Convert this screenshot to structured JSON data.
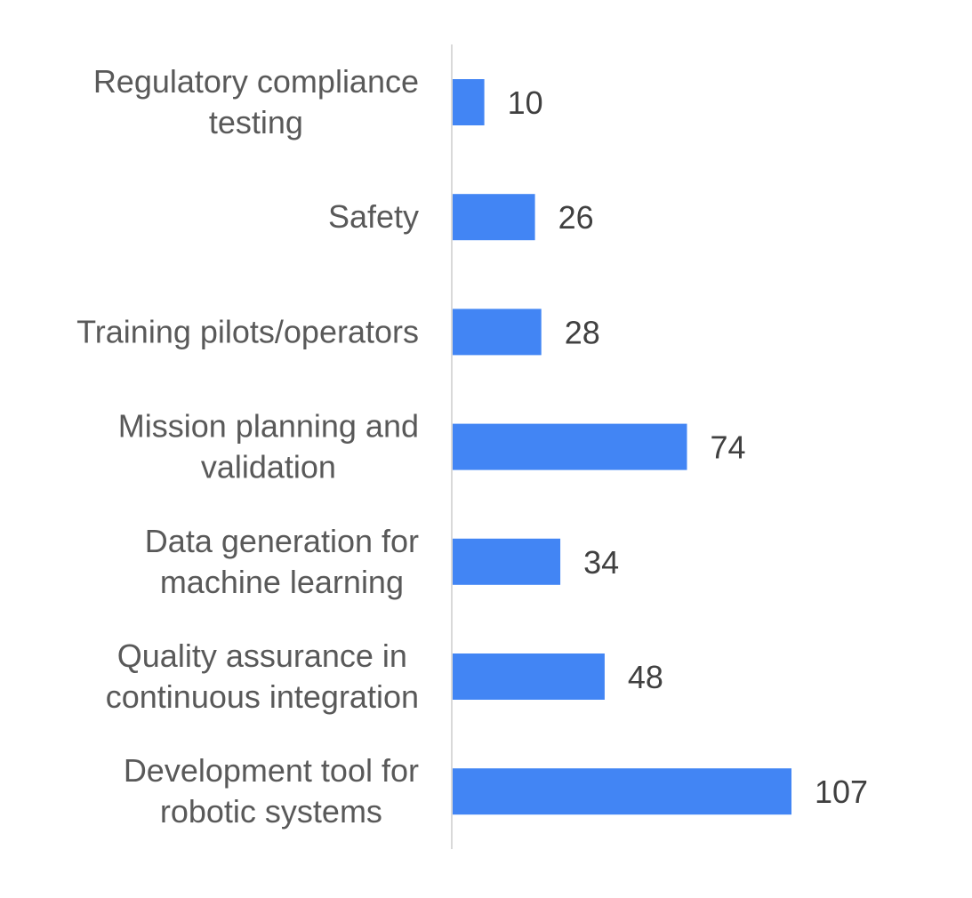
{
  "chart_data": {
    "type": "bar",
    "orientation": "horizontal",
    "title": "",
    "xlabel": "",
    "ylabel": "",
    "categories": [
      "Regulatory compliance testing",
      "Safety",
      "Training pilots/operators",
      "Mission planning and validation",
      "Data generation for machine learning",
      "Quality assurance in continuous integration",
      "Development tool for robotic systems"
    ],
    "category_label_lines": [
      [
        "Regulatory compliance",
        "testing"
      ],
      [
        "Safety"
      ],
      [
        "Training pilots/operators"
      ],
      [
        "Mission planning and",
        "validation"
      ],
      [
        "Data generation for",
        "machine learning"
      ],
      [
        "Quality assurance in",
        "continuous integration"
      ],
      [
        "Development tool for",
        "robotic systems"
      ]
    ],
    "values": [
      10,
      26,
      28,
      74,
      34,
      48,
      107
    ],
    "data_labels": [
      "10",
      "26",
      "28",
      "74",
      "34",
      "48",
      "107"
    ],
    "xlim": [
      0,
      107
    ],
    "grid": false,
    "legend": "none",
    "colors": {
      "bar": "#4285f4",
      "axis_line": "#d9d9d9",
      "category_text": "#595959",
      "value_text": "#404040"
    }
  }
}
